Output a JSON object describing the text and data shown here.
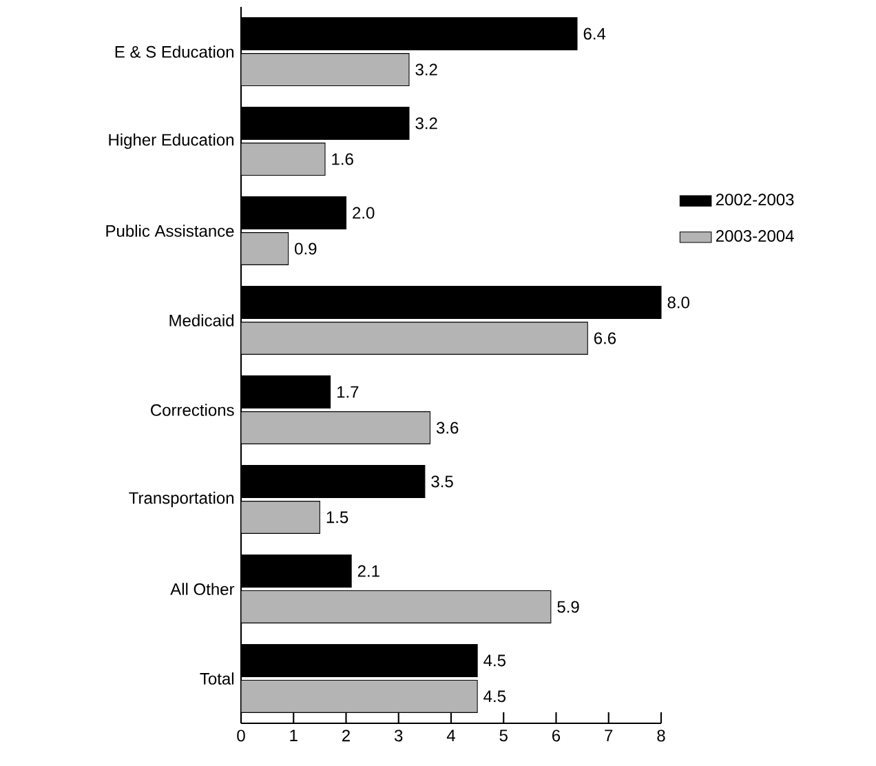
{
  "chart_data": {
    "type": "bar",
    "orientation": "horizontal",
    "categories": [
      "E & S Education",
      "Higher Education",
      "Public Assistance",
      "Medicaid",
      "Corrections",
      "Transportation",
      "All Other",
      "Total"
    ],
    "series": [
      {
        "name": "2002-2003",
        "color": "#000000",
        "values": [
          6.4,
          3.2,
          2.0,
          8.0,
          1.7,
          3.5,
          2.1,
          4.5
        ],
        "value_labels": [
          "6.4",
          "3.2",
          "2.0",
          "8.0",
          "1.7",
          "3.5",
          "2.1",
          "4.5"
        ]
      },
      {
        "name": "2003-2004",
        "color": "#b4b4b4",
        "values": [
          3.2,
          1.6,
          0.9,
          6.6,
          3.6,
          1.5,
          5.9,
          4.5
        ],
        "value_labels": [
          "3.2",
          "1.6",
          "0.9",
          "6.6",
          "3.6",
          "1.5",
          "5.9",
          "4.5"
        ]
      }
    ],
    "xlim": [
      0,
      8
    ],
    "xticks": [
      0,
      1,
      2,
      3,
      4,
      5,
      6,
      7,
      8
    ],
    "legend": "right",
    "grid": false
  }
}
